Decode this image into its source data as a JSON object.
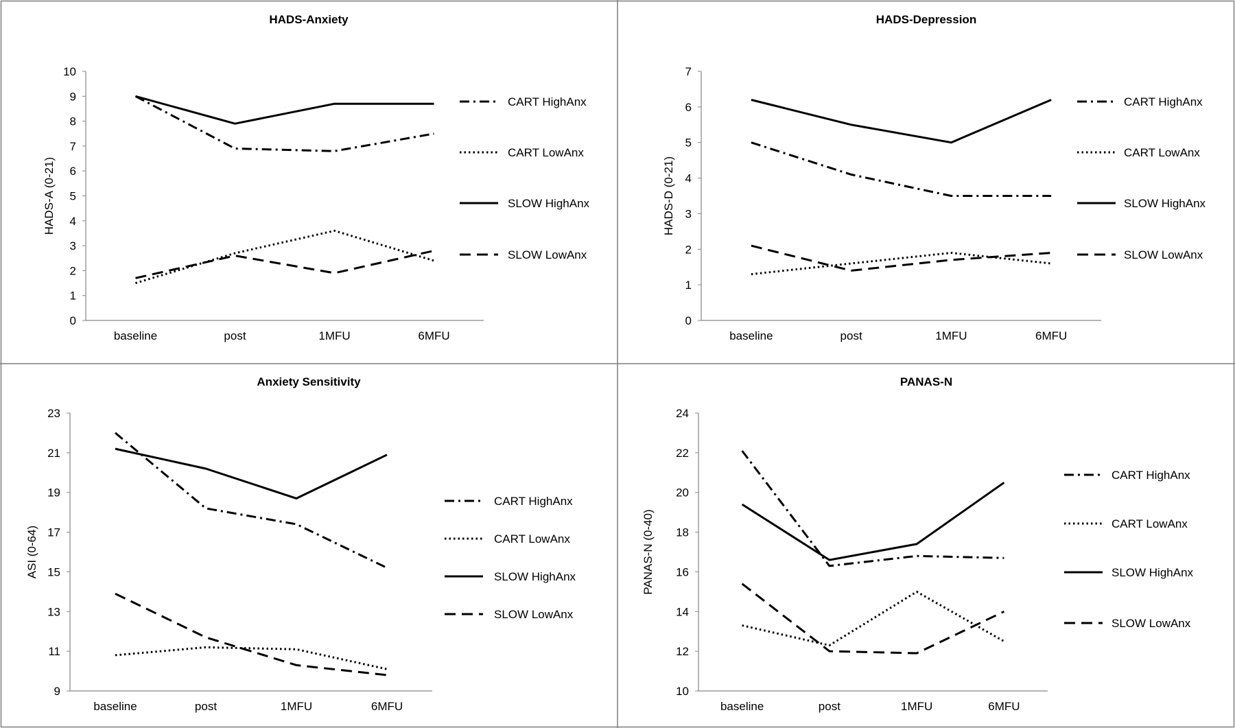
{
  "chart_data": [
    {
      "type": "line",
      "title": "HADS-Anxiety",
      "xlabel": "",
      "ylabel": "HADS-A (0-21)",
      "categories": [
        "baseline",
        "post",
        "1MFU",
        "6MFU"
      ],
      "ylim": [
        0,
        10
      ],
      "yticks": [
        0,
        1,
        2,
        3,
        4,
        5,
        6,
        7,
        8,
        9,
        10
      ],
      "ytick_labels": [
        "0",
        "1",
        "2",
        "3",
        "4",
        "5",
        "6",
        "7",
        "8",
        "9",
        "10"
      ],
      "legend_position": "right",
      "series": [
        {
          "name": "CART HighAnx",
          "style": "dashdot",
          "values": [
            9.0,
            6.9,
            6.8,
            7.5
          ]
        },
        {
          "name": "CART LowAnx",
          "style": "dotted",
          "values": [
            1.5,
            2.7,
            3.6,
            2.4
          ]
        },
        {
          "name": "SLOW HighAnx",
          "style": "solid",
          "values": [
            9.0,
            7.9,
            8.7,
            8.7
          ]
        },
        {
          "name": "SLOW LowAnx",
          "style": "dashed",
          "values": [
            1.7,
            2.6,
            1.9,
            2.8
          ]
        }
      ]
    },
    {
      "type": "line",
      "title": "HADS-Depression",
      "xlabel": "",
      "ylabel": "HADS-D (0-21)",
      "categories": [
        "baseline",
        "post",
        "1MFU",
        "6MFU"
      ],
      "ylim": [
        0,
        7
      ],
      "yticks": [
        0,
        1,
        2,
        3,
        4,
        5,
        6,
        7
      ],
      "ytick_labels": [
        "0",
        "1",
        "2",
        "3",
        "4",
        "5",
        "6",
        "7"
      ],
      "legend_position": "right",
      "series": [
        {
          "name": "CART HighAnx",
          "style": "dashdot",
          "values": [
            5.0,
            4.1,
            3.5,
            3.5
          ]
        },
        {
          "name": "CART LowAnx",
          "style": "dotted",
          "values": [
            1.3,
            1.6,
            1.9,
            1.6
          ]
        },
        {
          "name": "SLOW HighAnx",
          "style": "solid",
          "values": [
            6.2,
            5.5,
            5.0,
            6.2
          ]
        },
        {
          "name": "SLOW LowAnx",
          "style": "dashed",
          "values": [
            2.1,
            1.4,
            1.7,
            1.9
          ]
        }
      ]
    },
    {
      "type": "line",
      "title": "Anxiety Sensitivity",
      "xlabel": "",
      "ylabel": "ASI (0-64)",
      "categories": [
        "baseline",
        "post",
        "1MFU",
        "6MFU"
      ],
      "ylim": [
        9,
        23
      ],
      "yticks": [
        9,
        11,
        13,
        15,
        17,
        19,
        21,
        23
      ],
      "ytick_labels": [
        "9",
        "11",
        "13",
        "15",
        "17",
        "19",
        "21",
        "23"
      ],
      "legend_position": "right",
      "series": [
        {
          "name": "CART HighAnx",
          "style": "dashdot",
          "values": [
            22.0,
            18.2,
            17.4,
            15.2
          ]
        },
        {
          "name": "CART LowAnx",
          "style": "dotted",
          "values": [
            10.8,
            11.2,
            11.1,
            10.1
          ]
        },
        {
          "name": "SLOW HighAnx",
          "style": "solid",
          "values": [
            21.2,
            20.2,
            18.7,
            20.9
          ]
        },
        {
          "name": "SLOW LowAnx",
          "style": "dashed",
          "values": [
            13.9,
            11.7,
            10.3,
            9.8
          ]
        }
      ]
    },
    {
      "type": "line",
      "title": "PANAS-N",
      "xlabel": "",
      "ylabel": "PANAS-N (0-40)",
      "categories": [
        "baseline",
        "post",
        "1MFU",
        "6MFU"
      ],
      "ylim": [
        10,
        24
      ],
      "yticks": [
        10,
        12,
        14,
        16,
        18,
        20,
        22,
        24
      ],
      "ytick_labels": [
        "10",
        "12",
        "14",
        "16",
        "18",
        "20",
        "22",
        "24"
      ],
      "legend_position": "right",
      "series": [
        {
          "name": "CART HighAnx",
          "style": "dashdot",
          "values": [
            22.1,
            16.3,
            16.8,
            16.7
          ]
        },
        {
          "name": "CART LowAnx",
          "style": "dotted",
          "values": [
            13.3,
            12.3,
            15.0,
            12.5
          ]
        },
        {
          "name": "SLOW HighAnx",
          "style": "solid",
          "values": [
            19.4,
            16.6,
            17.4,
            20.5
          ]
        },
        {
          "name": "SLOW LowAnx",
          "style": "dashed",
          "values": [
            15.4,
            12.0,
            11.9,
            14.0
          ]
        }
      ]
    }
  ]
}
